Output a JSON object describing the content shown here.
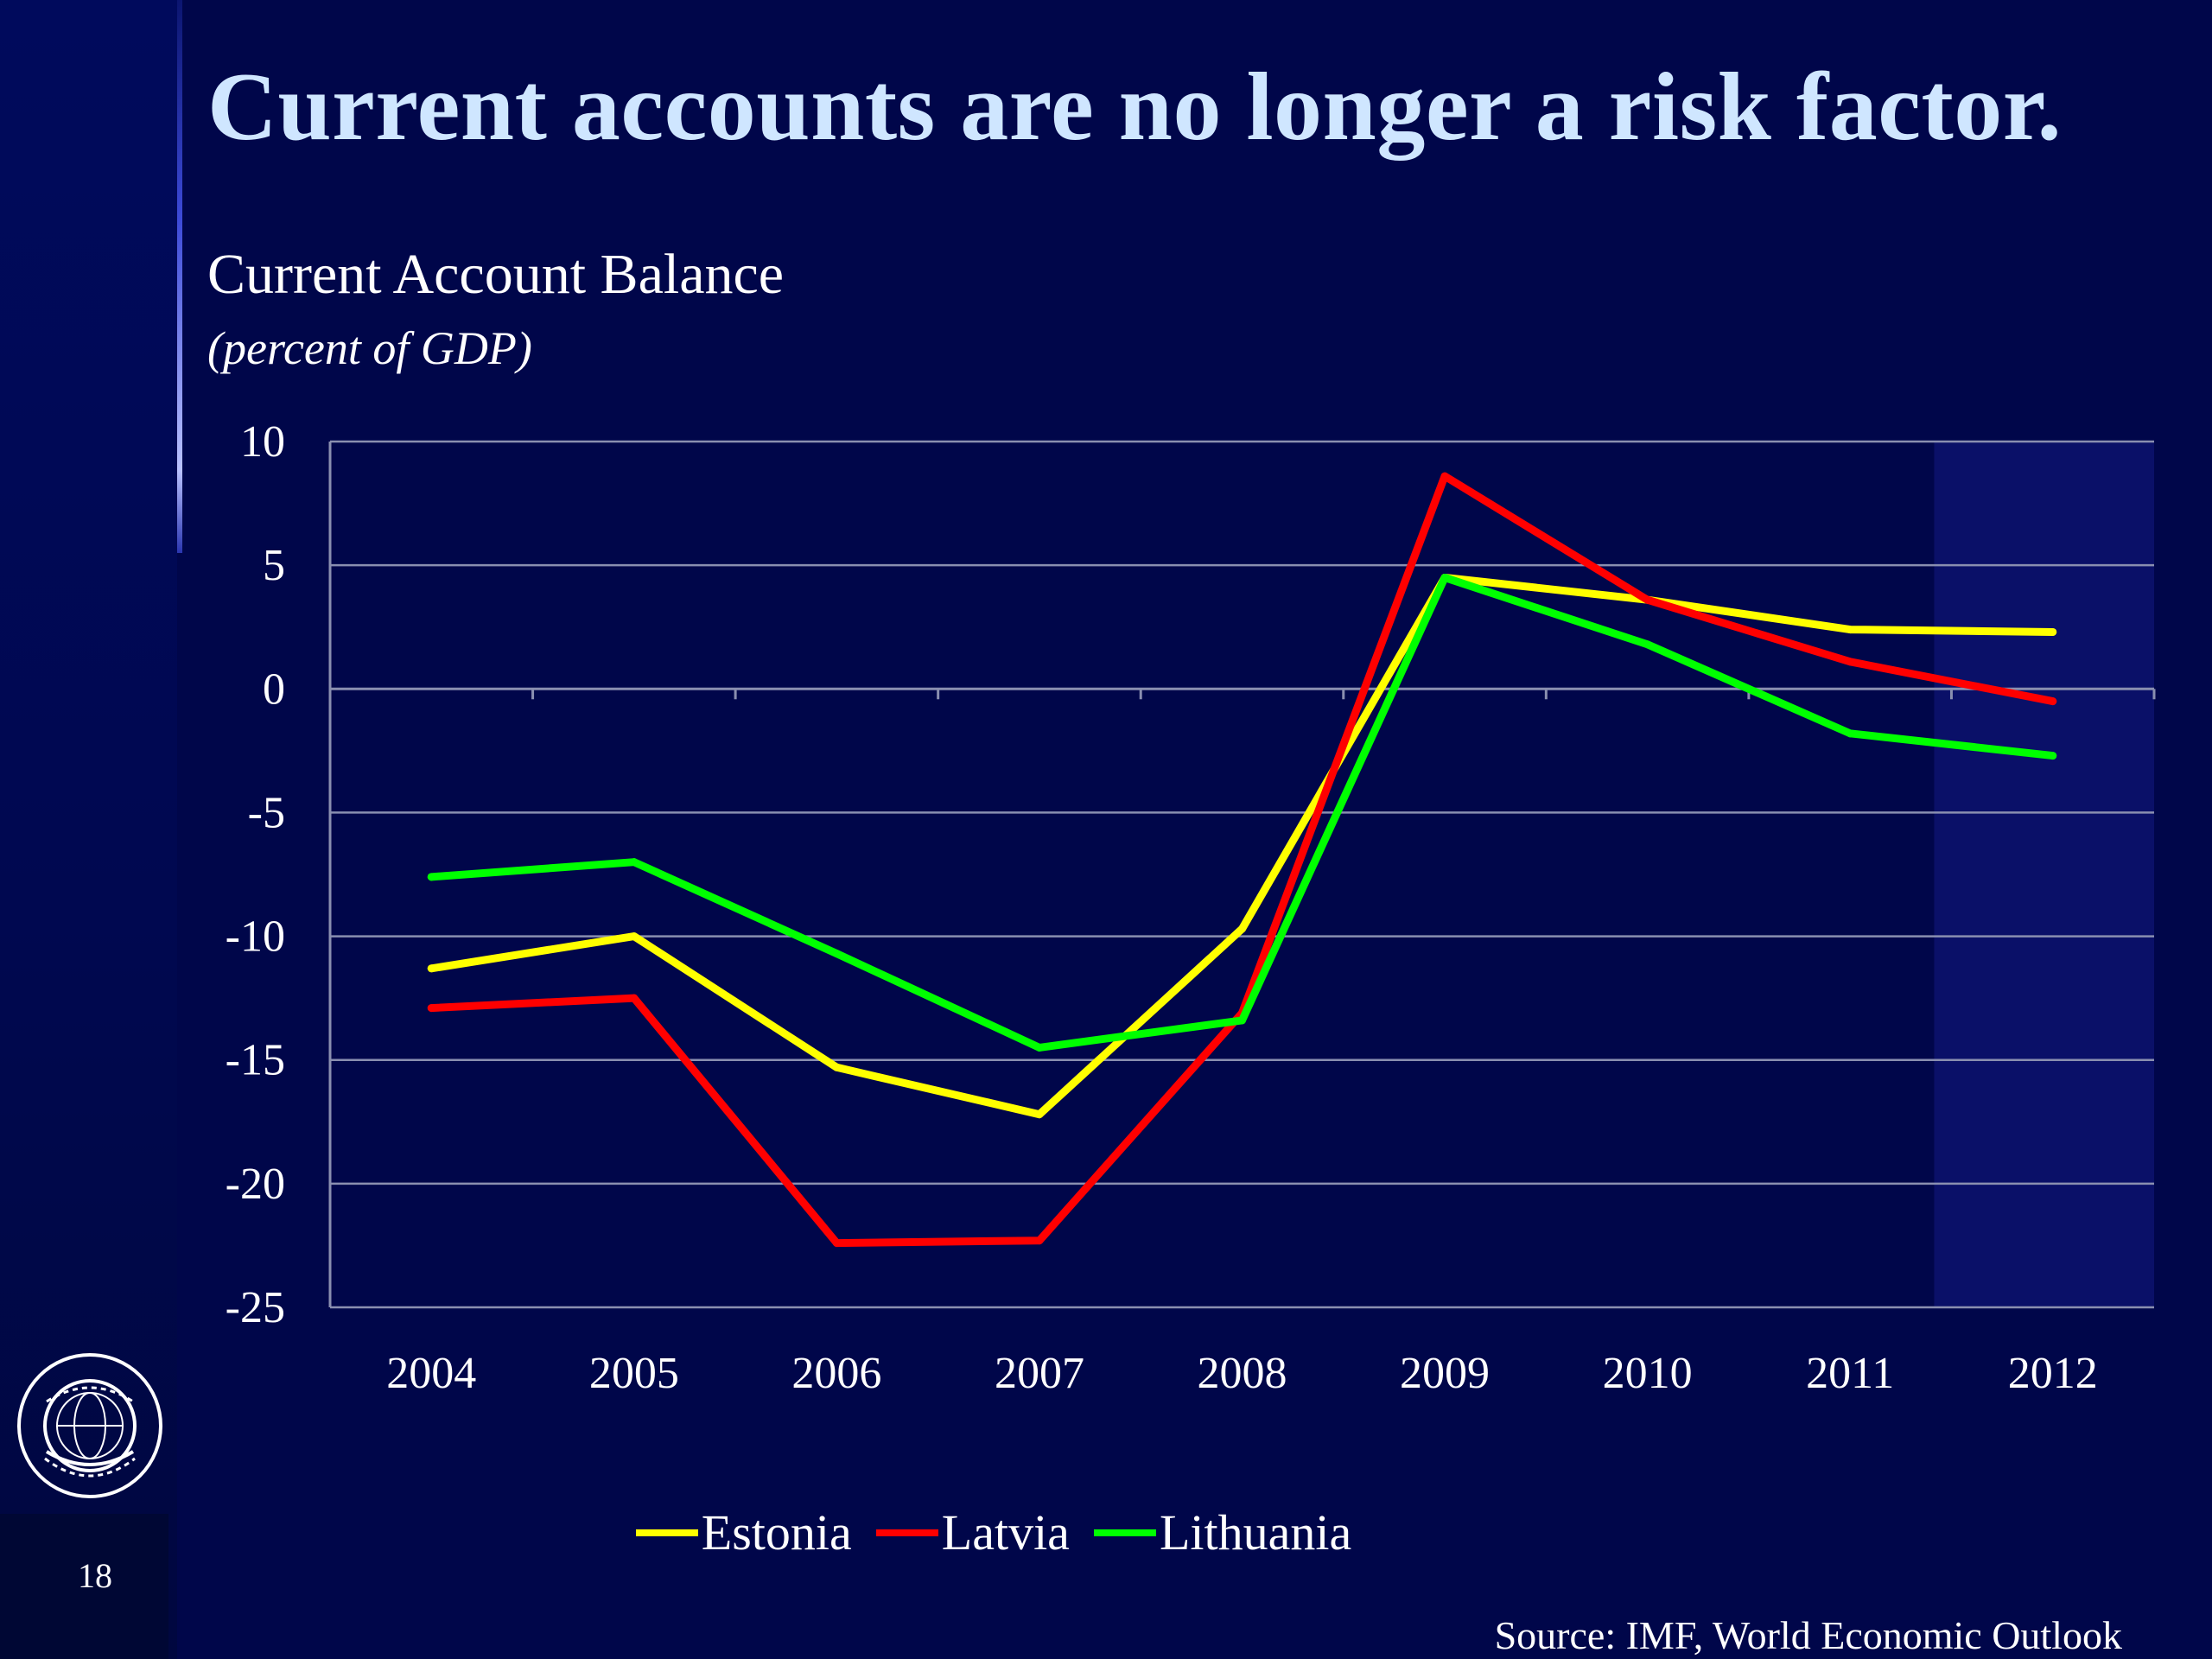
{
  "slide": {
    "title": "Current accounts are no longer a risk factor.",
    "page_number": "18",
    "source": "Source: IMF, World Economic Outlook",
    "background_color": "#00064a",
    "title_color": "#cfe6ff"
  },
  "chart_data": {
    "type": "line",
    "title": "Current Account Balance",
    "subtitle": "(percent of  GDP)",
    "categories": [
      "2004",
      "2005",
      "2006",
      "2007",
      "2008",
      "2009",
      "2010",
      "2011",
      "2012"
    ],
    "yticks": [
      "10",
      "5",
      "0",
      "-5",
      "-10",
      "-15",
      "-20",
      "-25"
    ],
    "ylim": [
      -25,
      10
    ],
    "grid": true,
    "legend_position": "bottom",
    "highlighted_category": "2012",
    "series": [
      {
        "name": "Estonia",
        "color": "#ffff00",
        "values": [
          -11.3,
          -10.0,
          -15.3,
          -17.2,
          -9.7,
          4.5,
          3.6,
          2.4,
          2.3
        ]
      },
      {
        "name": "Latvia",
        "color": "#ff0000",
        "values": [
          -12.9,
          -12.5,
          -22.4,
          -22.3,
          -13.1,
          8.6,
          3.6,
          1.1,
          -0.5
        ]
      },
      {
        "name": "Lithuania",
        "color": "#00ff00",
        "values": [
          -7.6,
          -7.0,
          -10.7,
          -14.5,
          -13.4,
          4.5,
          1.8,
          -1.8,
          -2.7
        ]
      }
    ]
  }
}
